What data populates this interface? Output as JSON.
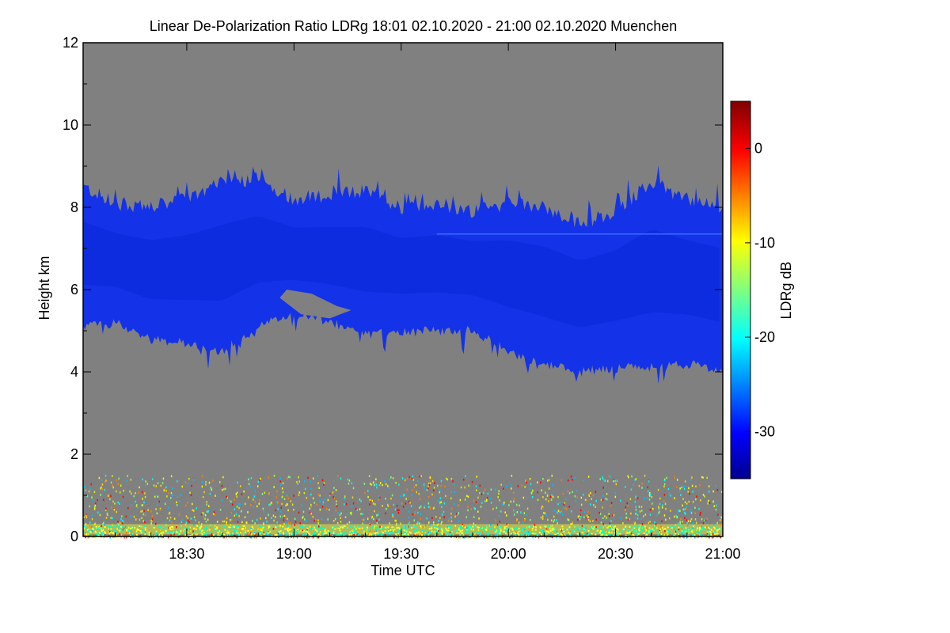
{
  "chart_data": {
    "type": "heatmap",
    "title": "Linear De-Polarization Ratio LDRg   18:01 02.10.2020 - 21:00 02.10.2020 Muenchen",
    "xlabel": "Time UTC",
    "ylabel": "Height km",
    "x_ticks": [
      "18:30",
      "19:00",
      "19:30",
      "20:00",
      "20:30",
      "21:00"
    ],
    "x_tick_minutes": [
      30,
      60,
      90,
      120,
      150,
      180
    ],
    "xlim_minutes": [
      1,
      180
    ],
    "y_ticks": [
      "0",
      "2",
      "4",
      "6",
      "8",
      "10",
      "12"
    ],
    "y_tick_values": [
      0,
      2,
      4,
      6,
      8,
      10,
      12
    ],
    "ylim": [
      0,
      12
    ],
    "colorbar": {
      "label": "LDRg dB",
      "range": [
        -35,
        5
      ],
      "ticks": [
        "0",
        "-10",
        "-20",
        "-30"
      ],
      "tick_values": [
        0,
        -10,
        -20,
        -30
      ]
    },
    "background_color": "#808080",
    "cloud_layer": {
      "approx_ldr_db": -32,
      "color": "#1432e8",
      "top_km_by_time": [
        [
          1,
          8.5
        ],
        [
          10,
          8.1
        ],
        [
          20,
          8.0
        ],
        [
          30,
          8.2
        ],
        [
          40,
          8.6
        ],
        [
          50,
          8.7
        ],
        [
          60,
          8.2
        ],
        [
          70,
          8.3
        ],
        [
          80,
          8.4
        ],
        [
          90,
          8.0
        ],
        [
          100,
          8.1
        ],
        [
          110,
          7.9
        ],
        [
          120,
          8.1
        ],
        [
          130,
          8.0
        ],
        [
          140,
          7.6
        ],
        [
          150,
          7.9
        ],
        [
          160,
          8.6
        ],
        [
          170,
          8.2
        ],
        [
          180,
          8.0
        ]
      ],
      "base_km_by_time": [
        [
          1,
          5.1
        ],
        [
          10,
          5.2
        ],
        [
          20,
          4.8
        ],
        [
          30,
          4.7
        ],
        [
          40,
          4.5
        ],
        [
          50,
          5.1
        ],
        [
          60,
          5.4
        ],
        [
          70,
          5.2
        ],
        [
          80,
          4.9
        ],
        [
          90,
          5.0
        ],
        [
          100,
          5.0
        ],
        [
          110,
          5.0
        ],
        [
          120,
          4.5
        ],
        [
          130,
          4.2
        ],
        [
          140,
          4.0
        ],
        [
          150,
          4.1
        ],
        [
          160,
          4.1
        ],
        [
          170,
          4.2
        ],
        [
          180,
          4.0
        ]
      ]
    },
    "boundary_layer": {
      "top_km": 1.5,
      "approx_ldr_db_range": [
        -25,
        0
      ]
    }
  }
}
